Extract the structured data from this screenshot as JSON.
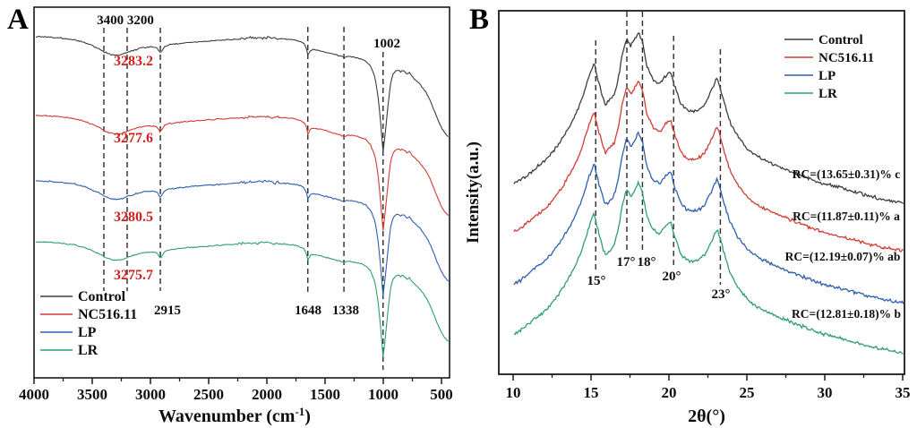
{
  "panels": {
    "a_label": "A",
    "b_label": "B"
  },
  "colors": {
    "control": "#3d3d3d",
    "nc516_11": "#d23b33",
    "lp": "#2d5fae",
    "lr": "#2fa06b",
    "annotation_red": "#cf1f1f",
    "axis": "#1a1a1a"
  },
  "chart_data": [
    {
      "type": "line",
      "panel": "A",
      "xlabel": "Wavenumber (cm⁻¹)",
      "ylabel": "",
      "x_ticks": [
        4000,
        3500,
        3000,
        2500,
        2000,
        1500,
        1000,
        500
      ],
      "x_axis_reversed": true,
      "x_range": [
        4000,
        435
      ],
      "grid": false,
      "legend_position": "lower-left",
      "series": [
        {
          "name": "Control",
          "color": "#3d3d3d",
          "oh_peak_label": "3283.2"
        },
        {
          "name": "NC516.11",
          "color": "#d23b33",
          "oh_peak_label": "3277.6"
        },
        {
          "name": "LP",
          "color": "#2d5fae",
          "oh_peak_label": "3280.5"
        },
        {
          "name": "LR",
          "color": "#2fa06b",
          "oh_peak_label": "3275.7"
        }
      ],
      "dashed_guides_x": [
        3400,
        3200,
        2915,
        1648,
        1338,
        1002
      ],
      "band_labels": [
        "3400 3200",
        "2915",
        "1648",
        "1338",
        "1002"
      ],
      "depth_profile_points": [
        [
          435,
          248
        ],
        [
          470,
          238
        ],
        [
          500,
          225
        ],
        [
          520,
          212
        ],
        [
          545,
          196
        ],
        [
          570,
          178
        ],
        [
          600,
          158
        ],
        [
          630,
          142
        ],
        [
          660,
          130
        ],
        [
          690,
          120
        ],
        [
          720,
          112
        ],
        [
          750,
          104
        ],
        [
          775,
          94
        ],
        [
          795,
          98
        ],
        [
          815,
          92
        ],
        [
          835,
          88
        ],
        [
          850,
          92
        ],
        [
          870,
          87
        ],
        [
          895,
          90
        ],
        [
          915,
          97
        ],
        [
          935,
          115
        ],
        [
          955,
          160
        ],
        [
          980,
          230
        ],
        [
          1002,
          283
        ],
        [
          1025,
          205
        ],
        [
          1045,
          150
        ],
        [
          1070,
          105
        ],
        [
          1110,
          78
        ],
        [
          1150,
          66
        ],
        [
          1190,
          61
        ],
        [
          1230,
          58
        ],
        [
          1270,
          56
        ],
        [
          1310,
          55
        ],
        [
          1338,
          58
        ],
        [
          1370,
          55
        ],
        [
          1400,
          52
        ],
        [
          1430,
          50
        ],
        [
          1470,
          47
        ],
        [
          1520,
          43
        ],
        [
          1570,
          40
        ],
        [
          1600,
          39
        ],
        [
          1625,
          41
        ],
        [
          1648,
          52
        ],
        [
          1662,
          34
        ],
        [
          1680,
          26
        ],
        [
          1700,
          22
        ],
        [
          1760,
          16
        ],
        [
          1850,
          14
        ],
        [
          1950,
          12
        ],
        [
          2000,
          10
        ],
        [
          2100,
          11
        ],
        [
          2250,
          14
        ],
        [
          2400,
          17
        ],
        [
          2550,
          20
        ],
        [
          2700,
          23
        ],
        [
          2840,
          28
        ],
        [
          2880,
          32
        ],
        [
          2915,
          48
        ],
        [
          2945,
          35
        ],
        [
          2990,
          33
        ],
        [
          3060,
          34
        ],
        [
          3150,
          41
        ],
        [
          3230,
          49
        ],
        [
          3283,
          53
        ],
        [
          3350,
          50
        ],
        [
          3400,
          44
        ],
        [
          3450,
          36
        ],
        [
          3550,
          24
        ],
        [
          3650,
          16
        ],
        [
          3800,
          11
        ],
        [
          3900,
          9
        ],
        [
          4000,
          8
        ]
      ]
    },
    {
      "type": "line",
      "panel": "B",
      "xlabel": "2θ(°)",
      "ylabel": "Intensity(a.u.)",
      "x_ticks": [
        10,
        15,
        20,
        25,
        30,
        35
      ],
      "x_range": [
        9.1,
        35.1
      ],
      "grid": false,
      "legend_position": "upper-right",
      "series": [
        {
          "name": "Control",
          "color": "#3d3d3d",
          "rc_label": "RC=(13.65±0.31)% c"
        },
        {
          "name": "NC516.11",
          "color": "#d23b33",
          "rc_label": "RC=(11.87±0.11)% a"
        },
        {
          "name": "LP",
          "color": "#2d5fae",
          "rc_label": "RC=(12.19±0.07)% ab"
        },
        {
          "name": "LR",
          "color": "#2fa06b",
          "rc_label": "RC=(12.81±0.18)% b"
        }
      ],
      "peak_guides": [
        {
          "two_theta": 15.3,
          "label": "15°"
        },
        {
          "two_theta": 17.3,
          "label": "17°"
        },
        {
          "two_theta": 18.3,
          "label": "18°"
        },
        {
          "two_theta": 20.3,
          "label": "20°"
        },
        {
          "two_theta": 23.3,
          "label": "23°"
        }
      ],
      "intensity_profile_points": [
        [
          10,
          20
        ],
        [
          10.5,
          22
        ],
        [
          11,
          25
        ],
        [
          11.5,
          28
        ],
        [
          12,
          31
        ],
        [
          12.5,
          35
        ],
        [
          13,
          40
        ],
        [
          13.5,
          46
        ],
        [
          14,
          53
        ],
        [
          14.4,
          60
        ],
        [
          14.8,
          70
        ],
        [
          15.2,
          78
        ],
        [
          15.5,
          68
        ],
        [
          15.9,
          58
        ],
        [
          16.2,
          60
        ],
        [
          16.5,
          63
        ],
        [
          16.8,
          72
        ],
        [
          17,
          82
        ],
        [
          17.3,
          90
        ],
        [
          17.55,
          86
        ],
        [
          17.8,
          89
        ],
        [
          18.05,
          93
        ],
        [
          18.3,
          88
        ],
        [
          18.6,
          76
        ],
        [
          19,
          70
        ],
        [
          19.4,
          68
        ],
        [
          19.8,
          72
        ],
        [
          20.1,
          74
        ],
        [
          20.4,
          66
        ],
        [
          20.8,
          58
        ],
        [
          21.3,
          55
        ],
        [
          21.8,
          55
        ],
        [
          22.3,
          58
        ],
        [
          22.7,
          64
        ],
        [
          23.1,
          71
        ],
        [
          23.5,
          60
        ],
        [
          23.9,
          50
        ],
        [
          24.4,
          43
        ],
        [
          25,
          37
        ],
        [
          25.7,
          33
        ],
        [
          26.5,
          30
        ],
        [
          27.5,
          27
        ],
        [
          28.5,
          24
        ],
        [
          29.5,
          21
        ],
        [
          30.5,
          19
        ],
        [
          31.5,
          17
        ],
        [
          32.5,
          15
        ],
        [
          33.5,
          13
        ],
        [
          34.3,
          12
        ],
        [
          35.1,
          11
        ]
      ]
    }
  ]
}
